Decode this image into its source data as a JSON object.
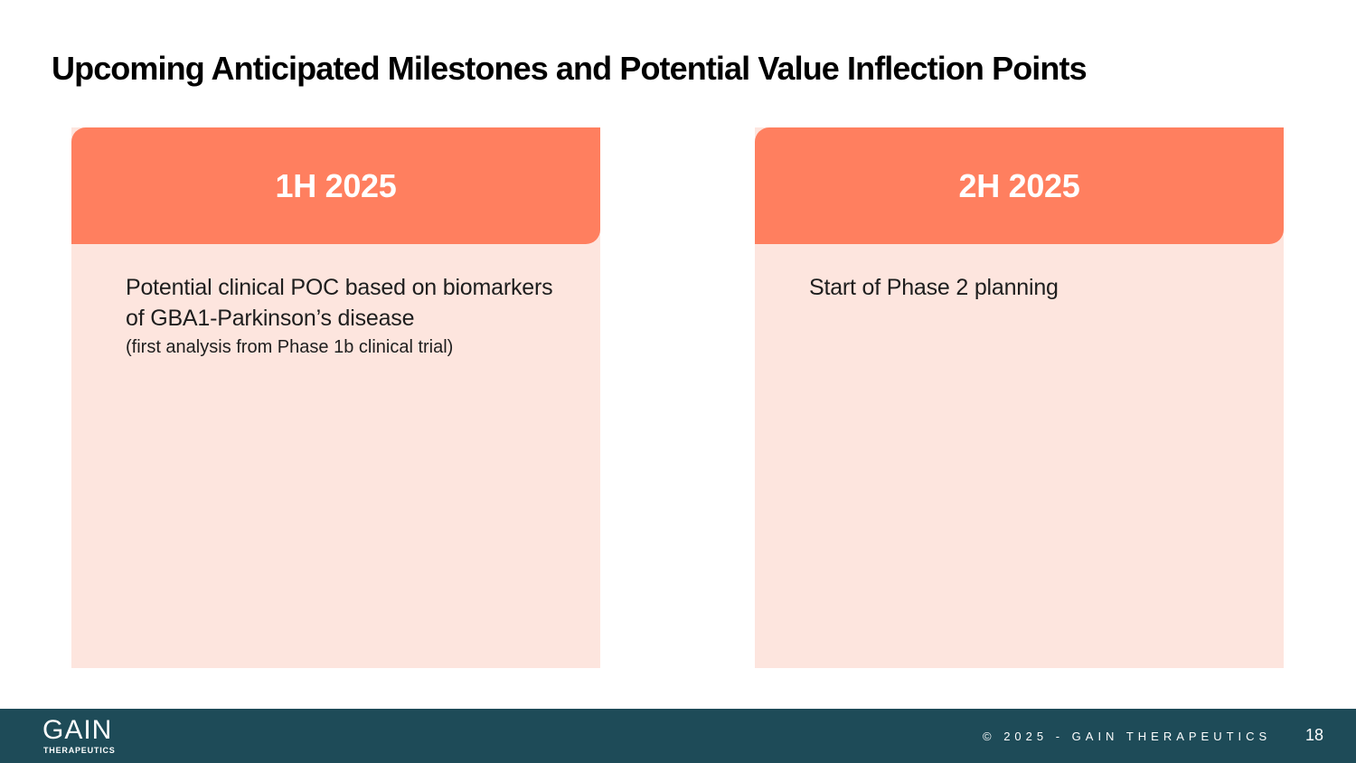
{
  "title": "Upcoming Anticipated Milestones and Potential Value Inflection Points",
  "cards": [
    {
      "header": "1H 2025",
      "main_text": "Potential clinical POC based on biomarkers of GBA1-Parkinson’s disease",
      "sub_text": "(first analysis from Phase 1b clinical trial)"
    },
    {
      "header": "2H 2025",
      "main_text": "Start of Phase 2 planning"
    }
  ],
  "footer": {
    "logo_word": "GAIN",
    "logo_sub": "THERAPEUTICS",
    "copyright": "© 2025 - GAIN THERAPEUTICS",
    "page_number": "18"
  },
  "colors": {
    "header_accent": "#ff7f5f",
    "card_background": "#fde5de",
    "footer_background": "#1e4b58"
  }
}
